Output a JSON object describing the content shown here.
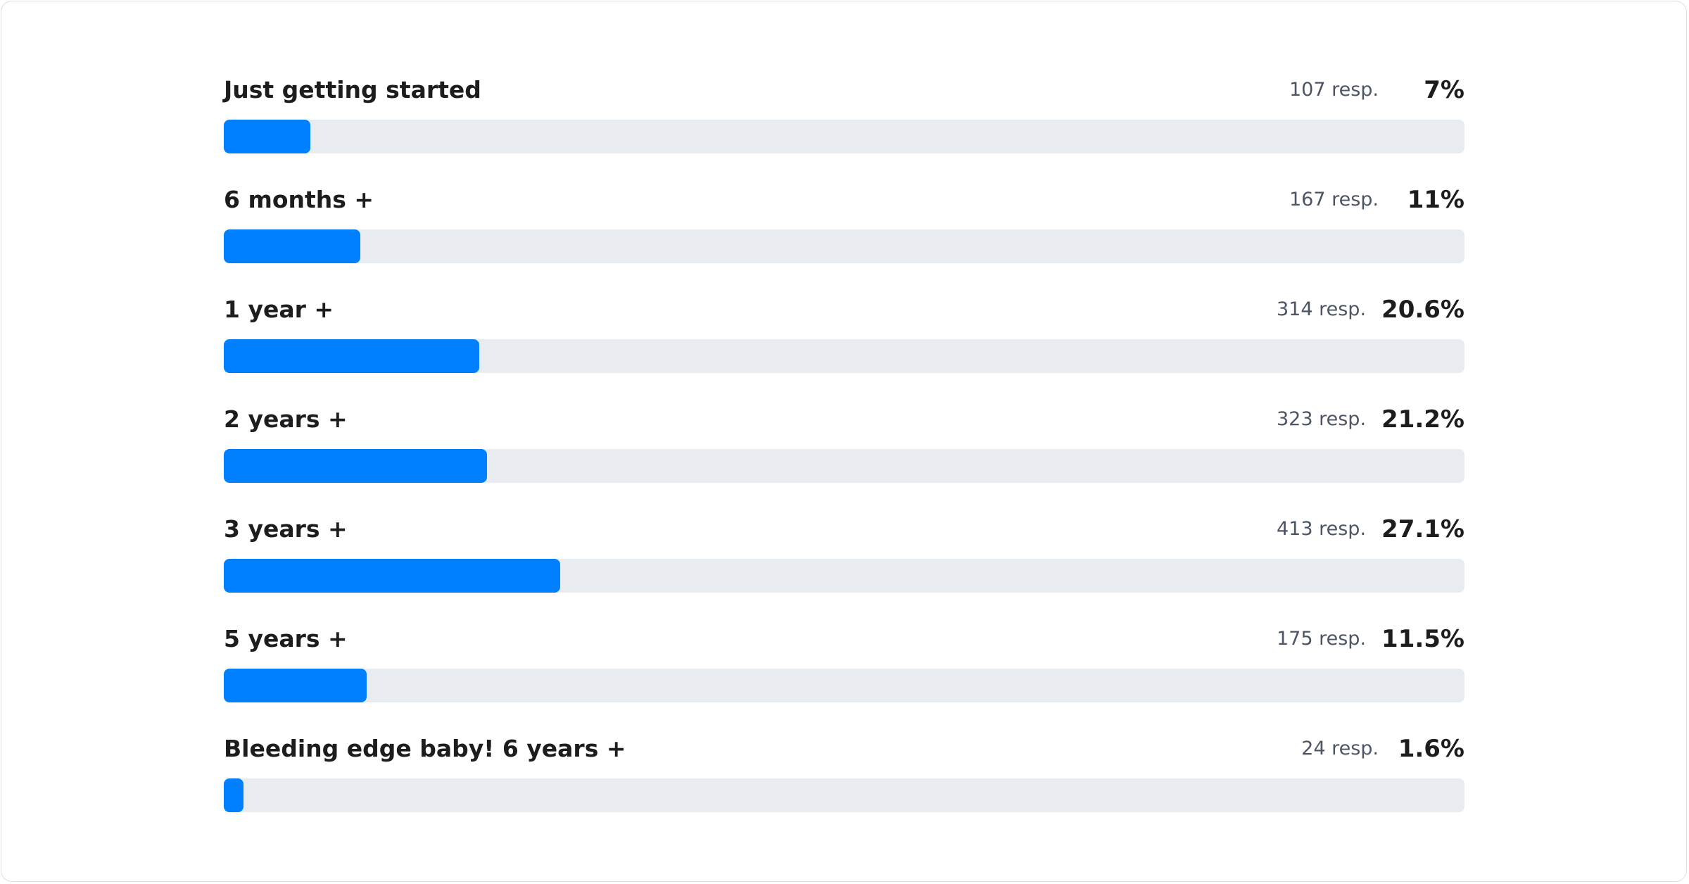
{
  "chart_data": {
    "type": "bar",
    "orientation": "horizontal",
    "xlim": [
      0,
      100
    ],
    "bar_color": "#0080ff",
    "track_color": "#e8ebf0",
    "items": [
      {
        "label": "Just getting started",
        "responses": "107 resp.",
        "percent_label": "7%",
        "value": 7
      },
      {
        "label": "6 months +",
        "responses": "167 resp.",
        "percent_label": "11%",
        "value": 11
      },
      {
        "label": "1 year +",
        "responses": "314 resp.",
        "percent_label": "20.6%",
        "value": 20.6
      },
      {
        "label": "2 years +",
        "responses": "323 resp.",
        "percent_label": "21.2%",
        "value": 21.2
      },
      {
        "label": "3 years +",
        "responses": "413 resp.",
        "percent_label": "27.1%",
        "value": 27.1
      },
      {
        "label": "5 years +",
        "responses": "175 resp.",
        "percent_label": "11.5%",
        "value": 11.5
      },
      {
        "label": "Bleeding edge baby! 6 years +",
        "responses": "24 resp.",
        "percent_label": "1.6%",
        "value": 1.6
      }
    ]
  }
}
